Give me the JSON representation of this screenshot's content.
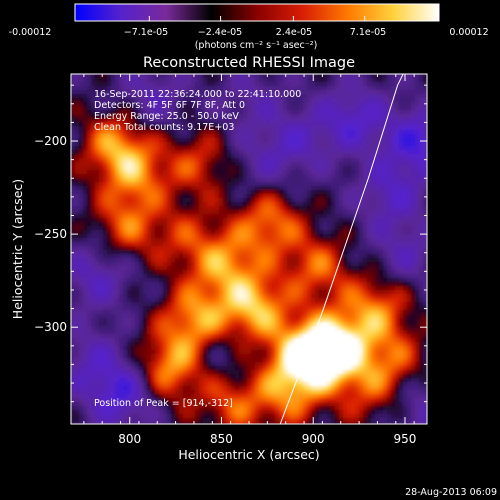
{
  "colorbar": {
    "tick_labels": [
      "-0.00012",
      "−7.1e-05",
      "−2.4e-05",
      "2.4e-05",
      "7.1e-05",
      "0.00012"
    ],
    "units_label": "(photons cm⁻² s⁻¹ asec⁻²)",
    "range": [
      -0.00012,
      0.00012
    ],
    "colors": [
      "#0000ff",
      "#5522cc",
      "#7a2a9a",
      "#000000",
      "#8a0000",
      "#d81e05",
      "#ff7a00",
      "#ffd23c",
      "#ffffff"
    ]
  },
  "chart_data": {
    "type": "heatmap",
    "title": "Reconstructed RHESSI Image",
    "xlabel": "Heliocentric X (arcsec)",
    "ylabel": "Heliocentric Y (arcsec)",
    "xlim": [
      768,
      962
    ],
    "ylim": [
      -352,
      -164
    ],
    "x_ticks": [
      800,
      850,
      900,
      950
    ],
    "y_ticks": [
      -200,
      -250,
      -300
    ],
    "grid": false,
    "peak": {
      "x": 914,
      "y": -312
    },
    "limb_curve": {
      "x": [
        882,
        890,
        898,
        906,
        914,
        922,
        930,
        938,
        946,
        950
      ],
      "y": [
        -352,
        -331,
        -311,
        -289,
        -266,
        -243,
        -220,
        -195,
        -170,
        -162
      ]
    },
    "sources": [
      {
        "x": 912,
        "y": -312,
        "value": 0.00012
      },
      {
        "x": 895,
        "y": -316,
        "value": 0.0001
      },
      {
        "x": 868,
        "y": -290,
        "value": 9e-05
      },
      {
        "x": 836,
        "y": -296,
        "value": 8e-05
      },
      {
        "x": 822,
        "y": -322,
        "value": 8e-05
      },
      {
        "x": 876,
        "y": -244,
        "value": 7e-05
      },
      {
        "x": 852,
        "y": -266,
        "value": 7e-05
      },
      {
        "x": 798,
        "y": -246,
        "value": 6e-05
      },
      {
        "x": 792,
        "y": -202,
        "value": 7e-05
      },
      {
        "x": 804,
        "y": -218,
        "value": 6e-05
      },
      {
        "x": 838,
        "y": -212,
        "value": 5e-05
      },
      {
        "x": 830,
        "y": -252,
        "value": 4e-05
      },
      {
        "x": 934,
        "y": -290,
        "value": 7e-05
      },
      {
        "x": 944,
        "y": -318,
        "value": 5e-05
      },
      {
        "x": 886,
        "y": -336,
        "value": 6e-05
      },
      {
        "x": 930,
        "y": -336,
        "value": 4e-05
      },
      {
        "x": 856,
        "y": -340,
        "value": 6e-05
      },
      {
        "x": 902,
        "y": -268,
        "value": 6e-05
      },
      {
        "x": 958,
        "y": -200,
        "value": -7e-05
      },
      {
        "x": 922,
        "y": -188,
        "value": -6e-05
      },
      {
        "x": 942,
        "y": -228,
        "value": -5e-05
      },
      {
        "x": 892,
        "y": -200,
        "value": -4e-05
      },
      {
        "x": 782,
        "y": -272,
        "value": -5e-05
      },
      {
        "x": 796,
        "y": -336,
        "value": -7e-05
      },
      {
        "x": 778,
        "y": -318,
        "value": -4e-05
      },
      {
        "x": 812,
        "y": -176,
        "value": -4e-05
      },
      {
        "x": 866,
        "y": -178,
        "value": -3e-05
      },
      {
        "x": 950,
        "y": -260,
        "value": -4e-05
      },
      {
        "x": 872,
        "y": -212,
        "value": -3e-05
      },
      {
        "x": 850,
        "y": -316,
        "value": -3e-05
      },
      {
        "x": 960,
        "y": -344,
        "value": -4e-05
      }
    ]
  },
  "annotations": {
    "time_range": "16-Sep-2011 22:36:24.000 to 22:41:10.000",
    "detectors": "Detectors: 4F 5F 6F 7F 8F, Att 0",
    "energy_range": "Energy Range: 25.0 - 50.0 keV",
    "method": "Clean    Total counts: 9.17E+03",
    "peak_label": "Position of Peak = [914,-312]"
  },
  "footer": {
    "timestamp": "28-Aug-2013 06:09"
  }
}
